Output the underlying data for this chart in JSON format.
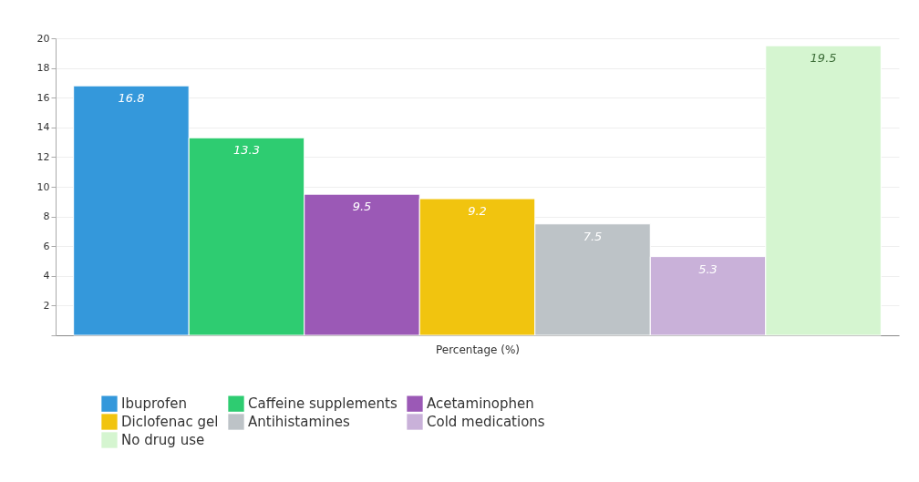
{
  "chart_data": {
    "type": "bar",
    "categories": [
      null
    ],
    "xlabel": "Percentage (%)",
    "series": [
      {
        "name": "Ibuprofen",
        "color": "#3498db",
        "values": [
          16.8
        ]
      },
      {
        "name": "Caffeine supplements",
        "color": "#2ecc71",
        "values": [
          13.3
        ]
      },
      {
        "name": "Acetaminophen",
        "color": "#9b59b6",
        "values": [
          9.5
        ]
      },
      {
        "name": "Diclofenac gel",
        "color": "#f1c40f",
        "values": [
          9.2
        ]
      },
      {
        "name": "Antihistamines",
        "color": "#bdc3c7",
        "values": [
          7.5
        ]
      },
      {
        "name": "Cold medications",
        "color": "#c9b1d9",
        "values": [
          5.3
        ]
      },
      {
        "name": "No drug use",
        "color": "#d5f5d0",
        "values": [
          19.5
        ]
      }
    ],
    "ylim": [
      0,
      20
    ],
    "yticks": [
      {
        "value": 0,
        "label": null
      },
      2,
      4,
      6,
      8,
      10,
      12,
      14,
      16,
      18,
      20
    ],
    "grid": "y",
    "legend": "bottom",
    "data_labels": true
  }
}
